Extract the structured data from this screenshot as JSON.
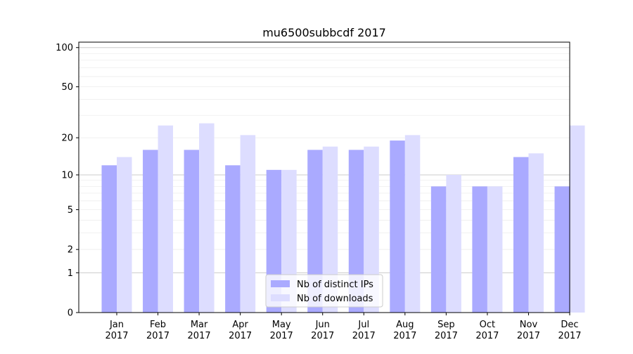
{
  "chart_data": {
    "type": "bar",
    "title": "mu6500subbcdf 2017",
    "xlabel": "",
    "ylabel": "",
    "yscale": "log1p",
    "ylim": [
      0,
      110
    ],
    "yticks": [
      {
        "value": 0,
        "label": "0"
      },
      {
        "value": 1,
        "label": "1"
      },
      {
        "value": 2,
        "label": "2"
      },
      {
        "value": 5,
        "label": "5"
      },
      {
        "value": 10,
        "label": "10"
      },
      {
        "value": 20,
        "label": "20"
      },
      {
        "value": 50,
        "label": "50"
      },
      {
        "value": 100,
        "label": "100"
      }
    ],
    "categories": [
      {
        "month": "Jan",
        "year": "2017"
      },
      {
        "month": "Feb",
        "year": "2017"
      },
      {
        "month": "Mar",
        "year": "2017"
      },
      {
        "month": "Apr",
        "year": "2017"
      },
      {
        "month": "May",
        "year": "2017"
      },
      {
        "month": "Jun",
        "year": "2017"
      },
      {
        "month": "Jul",
        "year": "2017"
      },
      {
        "month": "Aug",
        "year": "2017"
      },
      {
        "month": "Sep",
        "year": "2017"
      },
      {
        "month": "Oct",
        "year": "2017"
      },
      {
        "month": "Nov",
        "year": "2017"
      },
      {
        "month": "Dec",
        "year": "2017"
      }
    ],
    "series": [
      {
        "name": "Nb of distinct IPs",
        "color": "#aaaaff",
        "values": [
          12,
          16,
          16,
          12,
          11,
          16,
          16,
          19,
          8,
          8,
          14,
          8
        ]
      },
      {
        "name": "Nb of downloads",
        "color": "#ddddff",
        "values": [
          14,
          25,
          26,
          21,
          11,
          17,
          17,
          21,
          10,
          8,
          15,
          25
        ]
      }
    ],
    "legend": "lower center",
    "grid": true
  }
}
